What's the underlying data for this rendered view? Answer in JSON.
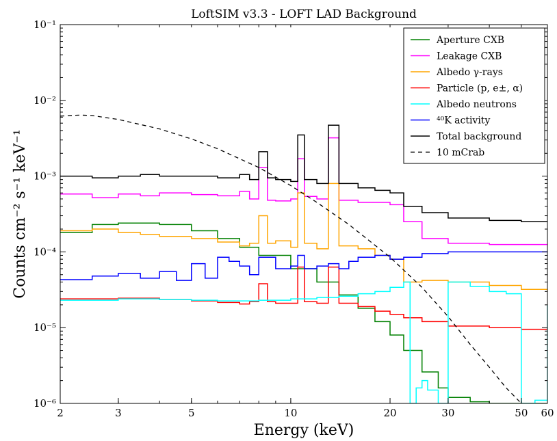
{
  "chart_data": {
    "type": "line",
    "title": "LoftSIM v3.3 - LOFT LAD Background",
    "xlabel": "Energy (keV)",
    "ylabel": "Counts cm⁻² s⁻¹ keV⁻¹",
    "xscale": "log",
    "yscale": "log",
    "xlim": [
      2,
      60
    ],
    "ylim": [
      1e-06,
      0.1
    ],
    "x_ticks": [
      2,
      3,
      5,
      10,
      20,
      30,
      50,
      60
    ],
    "x_tick_labels": [
      "2",
      "3",
      "5",
      "10",
      "20",
      "30",
      "50",
      "60"
    ],
    "y_ticks": [
      1e-06,
      1e-05,
      0.0001,
      0.001,
      0.01,
      0.1
    ],
    "y_tick_labels": [
      "10⁻⁶",
      "10⁻⁵",
      "10⁻⁴",
      "10⁻³",
      "10⁻²",
      "10⁻¹"
    ],
    "grid": false,
    "legend_position": "top-right",
    "series": [
      {
        "name": "Aperture CXB",
        "color": "#008000",
        "style": "step",
        "x": [
          2,
          2.5,
          3,
          3.5,
          4,
          5,
          6,
          7,
          8,
          10,
          12,
          14,
          16,
          18,
          20,
          22,
          25,
          28,
          30,
          35,
          40
        ],
        "y": [
          0.00018,
          0.00023,
          0.00024,
          0.00024,
          0.00023,
          0.00019,
          0.00015,
          0.000115,
          9e-05,
          6e-05,
          4e-05,
          2.7e-05,
          1.8e-05,
          1.2e-05,
          8e-06,
          5e-06,
          2.6e-06,
          1.6e-06,
          1.2e-06,
          1.05e-06,
          1e-06
        ]
      },
      {
        "name": "Leakage CXB",
        "color": "#ff00ff",
        "style": "step",
        "x": [
          2,
          2.5,
          3,
          3.5,
          4,
          5,
          6,
          7,
          7.5,
          8,
          8.5,
          9,
          10,
          10.5,
          11,
          12,
          13,
          14,
          16,
          18,
          20,
          22,
          25,
          30,
          40,
          50,
          60
        ],
        "y": [
          0.00058,
          0.00052,
          0.00058,
          0.00055,
          0.0006,
          0.00057,
          0.00055,
          0.00063,
          0.0005,
          0.0013,
          0.00048,
          0.00047,
          0.0005,
          0.0017,
          0.00054,
          0.0005,
          0.0032,
          0.00048,
          0.00045,
          0.00045,
          0.00042,
          0.00025,
          0.00015,
          0.00013,
          0.000125,
          0.000125,
          0.000125
        ]
      },
      {
        "name": "Albedo γ-rays",
        "color": "#ffa500",
        "style": "step",
        "x": [
          2,
          2.5,
          3,
          3.5,
          4,
          5,
          6,
          7,
          7.5,
          8,
          8.5,
          9,
          10,
          10.5,
          11,
          12,
          13,
          14,
          16,
          18,
          20,
          22,
          25,
          30,
          40,
          50,
          60
        ],
        "y": [
          0.00019,
          0.0002,
          0.00018,
          0.00017,
          0.00016,
          0.00015,
          0.000135,
          0.00012,
          0.00013,
          0.0003,
          0.00013,
          0.00014,
          0.000115,
          0.0006,
          0.00013,
          0.00011,
          0.0008,
          0.00012,
          0.00011,
          9e-05,
          8e-05,
          4e-05,
          4.2e-05,
          4e-05,
          3.6e-05,
          3.2e-05,
          3e-05
        ]
      },
      {
        "name": "Particle (p, e±, α)",
        "color": "#ff0000",
        "style": "step",
        "x": [
          2,
          3,
          4,
          5,
          6,
          7,
          7.5,
          8,
          8.5,
          9,
          10,
          10.5,
          11,
          12,
          13,
          14,
          16,
          18,
          20,
          22,
          25,
          30,
          40,
          50,
          60
        ],
        "y": [
          2.4e-05,
          2.45e-05,
          2.35e-05,
          2.25e-05,
          2.15e-05,
          2.05e-05,
          2.2e-05,
          3.8e-05,
          2.2e-05,
          2.1e-05,
          2.1e-05,
          6.3e-05,
          2.2e-05,
          2.1e-05,
          6.3e-05,
          2.1e-05,
          1.9e-05,
          1.65e-05,
          1.5e-05,
          1.35e-05,
          1.2e-05,
          1.05e-05,
          1e-05,
          9.5e-06,
          9.5e-06
        ]
      },
      {
        "name": "Albedo neutrons",
        "color": "#00ffff",
        "style": "step",
        "x": [
          2,
          3,
          4,
          5,
          6,
          8,
          10,
          12,
          14,
          16,
          18,
          20,
          22,
          23,
          24,
          25,
          26,
          28,
          30,
          35,
          40,
          45,
          50,
          55,
          60
        ],
        "y": [
          2.3e-05,
          2.4e-05,
          2.35e-05,
          2.3e-05,
          2.25e-05,
          2.3e-05,
          2.4e-05,
          2.5e-05,
          2.6e-05,
          2.8e-05,
          3e-05,
          3.4e-05,
          4e-05,
          1e-06,
          1.6e-06,
          2e-06,
          1.5e-06,
          1e-06,
          4e-05,
          3.5e-05,
          3e-05,
          2.8e-05,
          1e-06,
          1.1e-06,
          2e-05
        ]
      },
      {
        "name": "⁴⁰K activity",
        "color": "#0000ff",
        "style": "step",
        "x": [
          2,
          2.5,
          3,
          3.5,
          4,
          4.5,
          5,
          5.5,
          6,
          6.5,
          7,
          7.5,
          8,
          9,
          10,
          10.5,
          11,
          12,
          13,
          14,
          15,
          16,
          18,
          20,
          22,
          25,
          30,
          40,
          50,
          60
        ],
        "y": [
          4.3e-05,
          4.8e-05,
          5.2e-05,
          4.5e-05,
          5.5e-05,
          4.2e-05,
          7e-05,
          4.5e-05,
          8.5e-05,
          7.5e-05,
          6.5e-05,
          5e-05,
          8.5e-05,
          6e-05,
          6.5e-05,
          9e-05,
          6e-05,
          6.5e-05,
          7e-05,
          6e-05,
          7.5e-05,
          8.5e-05,
          9e-05,
          8e-05,
          8.5e-05,
          9.5e-05,
          0.0001,
          0.0001,
          0.0001,
          0.0001
        ]
      },
      {
        "name": "Total background",
        "color": "#000000",
        "style": "step",
        "x": [
          2,
          2.5,
          3,
          3.5,
          4,
          5,
          6,
          7,
          7.5,
          8,
          8.5,
          9,
          10,
          10.5,
          11,
          12,
          13,
          14,
          16,
          18,
          20,
          22,
          25,
          30,
          40,
          50,
          60
        ],
        "y": [
          0.001,
          0.00095,
          0.001,
          0.00105,
          0.001,
          0.001,
          0.00095,
          0.00105,
          0.0009,
          0.0021,
          0.00095,
          0.0009,
          0.00085,
          0.0035,
          0.0009,
          0.0008,
          0.0047,
          0.0008,
          0.0007,
          0.00065,
          0.0006,
          0.0004,
          0.00033,
          0.00028,
          0.00026,
          0.00025,
          0.00025
        ]
      },
      {
        "name": "10 mCrab",
        "color": "#000000",
        "style": "dashed",
        "x": [
          2,
          2.3,
          2.5,
          3,
          4,
          5,
          6,
          8,
          10,
          12,
          15,
          20,
          25,
          30,
          35,
          40,
          45,
          50
        ],
        "y": [
          0.0062,
          0.0064,
          0.0063,
          0.0056,
          0.0042,
          0.0031,
          0.0023,
          0.0013,
          0.00075,
          0.00045,
          0.00023,
          8.5e-05,
          3.4e-05,
          1.4e-05,
          6e-06,
          3e-06,
          1.6e-06,
          1e-06
        ]
      }
    ]
  }
}
